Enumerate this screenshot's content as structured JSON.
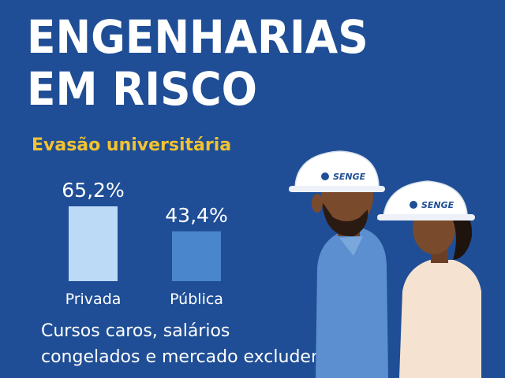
{
  "header": {
    "title_line1": "ENGENHARIAS",
    "title_line2": "EM RISCO",
    "subtitle": "Evasão universitária"
  },
  "chart_data": {
    "type": "bar",
    "title": "Evasão universitária",
    "categories": [
      "Privada",
      "Pública"
    ],
    "values": [
      65.2,
      43.4
    ],
    "value_labels": [
      "65,2%",
      "43,4%"
    ],
    "colors": [
      "#bcd9f5",
      "#4a86cc"
    ],
    "ylim": [
      0,
      65.2
    ],
    "grid": false
  },
  "caption": {
    "line1": "Cursos caros, salários",
    "line2": "congelados e mercado excludente"
  },
  "helmet_brand": "SENGE",
  "colors": {
    "background": "#1f4e96",
    "accent": "#f2c230",
    "title": "#ffffff"
  }
}
